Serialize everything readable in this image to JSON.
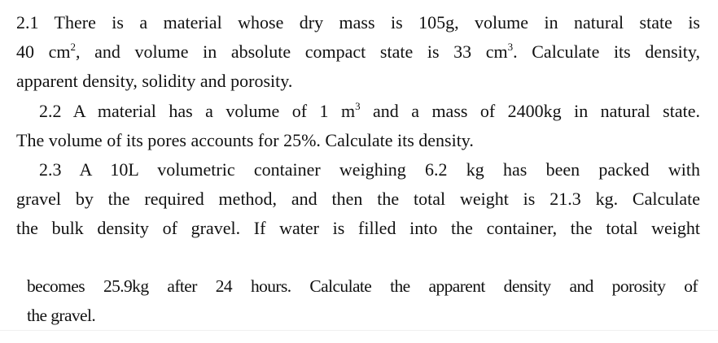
{
  "block1": {
    "l1": "2.1 There is a material whose dry mass is 105g, volume in natural state is",
    "l2a": "40 cm",
    "l2s1": "2",
    "l2b": ", and volume in absolute compact state is 33 cm",
    "l2s2": "3",
    "l2c": ". Calculate its density,",
    "l3": "apparent density, solidity and porosity.",
    "l4a": "2.2 A material has a volume of 1 m",
    "l4s": "3",
    "l4b": " and a mass of 2400kg in natural state.",
    "l5": "The volume of its pores accounts for 25%. Calculate its density.",
    "l6": "2.3 A 10L volumetric container weighing 6.2 kg has been packed with",
    "l7": "gravel by the required method, and then the total weight is 21.3 kg. Calculate",
    "l8": "the bulk density of gravel. If water is filled into the container, the total weight"
  },
  "block2": {
    "l1": "becomes 25.9kg after 24 hours. Calculate the apparent density and porosity of",
    "l2": "the gravel."
  }
}
